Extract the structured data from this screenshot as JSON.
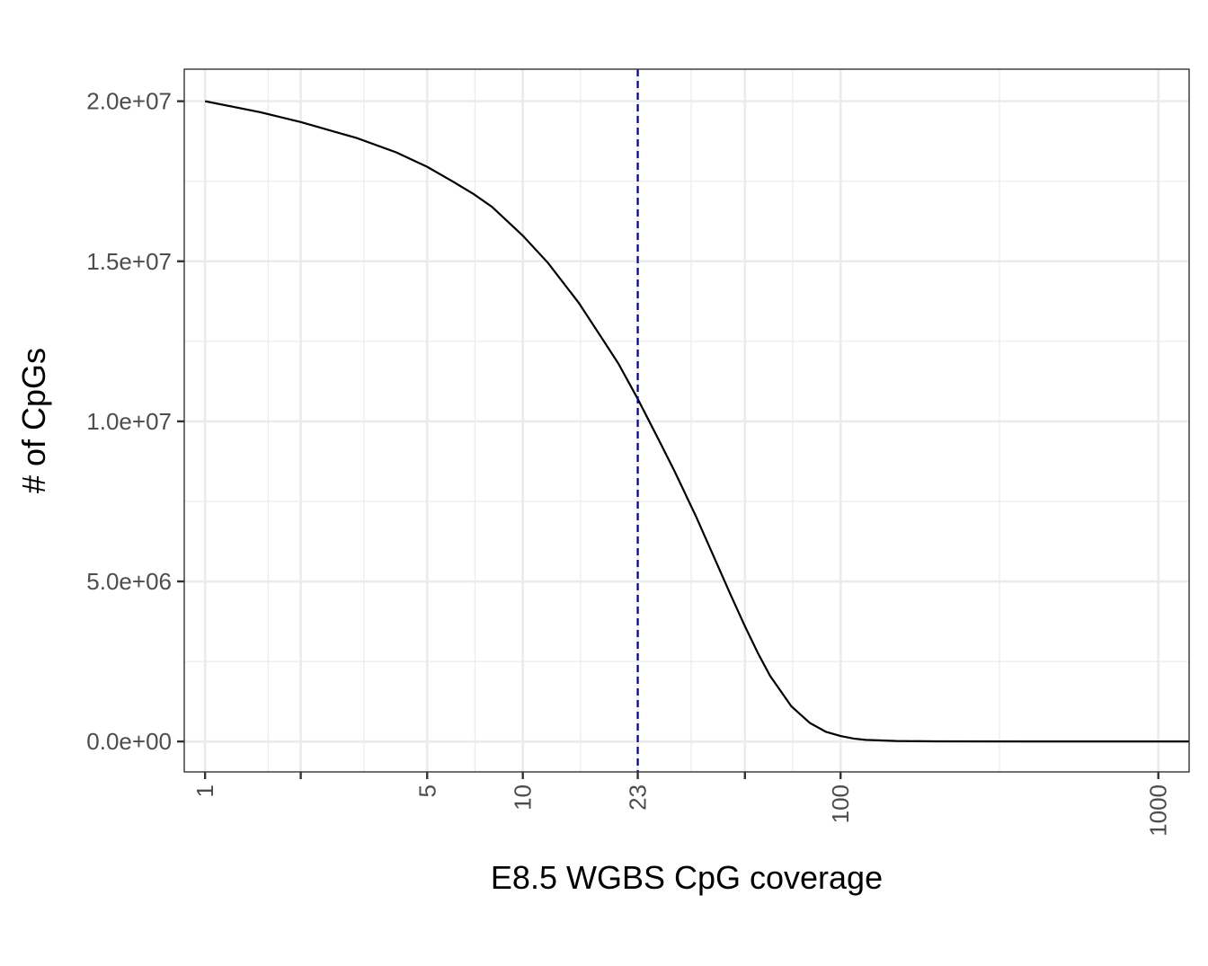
{
  "chart_data": {
    "type": "line",
    "title": "",
    "xlabel": "E8.5 WGBS CpG coverage",
    "ylabel": "# of CpGs",
    "x_scale": "log10",
    "xlim": [
      0.86,
      1250
    ],
    "ylim": [
      -950000,
      21000000
    ],
    "x_ticks": [
      {
        "value": 1,
        "label": "1"
      },
      {
        "value": 2,
        "label": ""
      },
      {
        "value": 5,
        "label": "5"
      },
      {
        "value": 10,
        "label": "10"
      },
      {
        "value": 23,
        "label": "23"
      },
      {
        "value": 50,
        "label": ""
      },
      {
        "value": 100,
        "label": "100"
      },
      {
        "value": 1000,
        "label": "1000"
      }
    ],
    "x_minor_gridlines": [
      1.58,
      3.16,
      7.07,
      15.2,
      33.9,
      70.7,
      316.2
    ],
    "y_ticks": [
      {
        "value": 0,
        "label": "0.0e+00"
      },
      {
        "value": 5000000,
        "label": "5.0e+06"
      },
      {
        "value": 10000000,
        "label": "1.0e+07"
      },
      {
        "value": 15000000,
        "label": "1.5e+07"
      },
      {
        "value": 20000000,
        "label": "2.0e+07"
      }
    ],
    "y_minor_gridlines": [
      2500000,
      7500000,
      12500000,
      17500000
    ],
    "grid": true,
    "series": [
      {
        "color": "#000000",
        "x": [
          1,
          1.5,
          2,
          3,
          4,
          5,
          6,
          7,
          8,
          10,
          12,
          15,
          18,
          20,
          23,
          27,
          30,
          35,
          40,
          45,
          50,
          55,
          60,
          70,
          80,
          90,
          100,
          110,
          120,
          150,
          200,
          500,
          1000,
          1250
        ],
        "y": [
          20000000,
          19650000,
          19350000,
          18850000,
          18400000,
          17950000,
          17500000,
          17100000,
          16700000,
          15800000,
          14950000,
          13700000,
          12500000,
          11800000,
          10700000,
          9350000,
          8450000,
          7050000,
          5750000,
          4600000,
          3600000,
          2750000,
          2050000,
          1100000,
          580000,
          300000,
          170000,
          90000,
          50000,
          15000,
          4000,
          500,
          100,
          0
        ]
      }
    ],
    "reference_line": {
      "orientation": "vertical",
      "x": 23,
      "style": "dashed",
      "color": "#00008b"
    }
  }
}
